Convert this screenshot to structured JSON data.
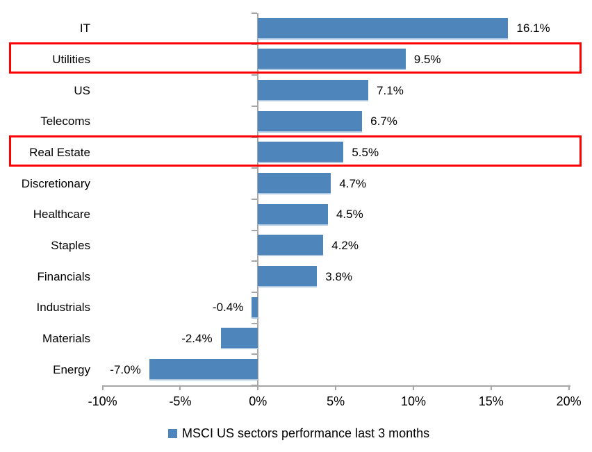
{
  "chart_data": {
    "type": "bar",
    "orientation": "horizontal",
    "title": "",
    "categories": [
      "IT",
      "Utilities",
      "US",
      "Telecoms",
      "Real Estate",
      "Discretionary",
      "Healthcare",
      "Staples",
      "Financials",
      "Industrials",
      "Materials",
      "Energy"
    ],
    "values": [
      16.1,
      9.5,
      7.1,
      6.7,
      5.5,
      4.7,
      4.5,
      4.2,
      3.8,
      -0.4,
      -2.4,
      -7.0
    ],
    "data_labels": [
      "16.1%",
      "9.5%",
      "7.1%",
      "6.7%",
      "5.5%",
      "4.7%",
      "4.5%",
      "4.2%",
      "3.8%",
      "-0.4%",
      "-2.4%",
      "-7.0%"
    ],
    "xlim": [
      -10,
      20
    ],
    "x_tick_values": [
      -10,
      -5,
      0,
      5,
      10,
      15,
      20
    ],
    "x_tick_labels": [
      "-10%",
      "-5%",
      "0%",
      "5%",
      "10%",
      "15%",
      "20%"
    ],
    "grid": false,
    "legend_position": "bottom",
    "legend": "MSCI US sectors performance last 3 months",
    "bar_color": "#4E86BC",
    "bar_edge_color": "#AFC8E2",
    "axis_color": "#A6A6A6",
    "text_color": "#000000",
    "highlight_color": "#FF0000",
    "highlighted_categories": [
      "Utilities",
      "Real Estate"
    ]
  }
}
